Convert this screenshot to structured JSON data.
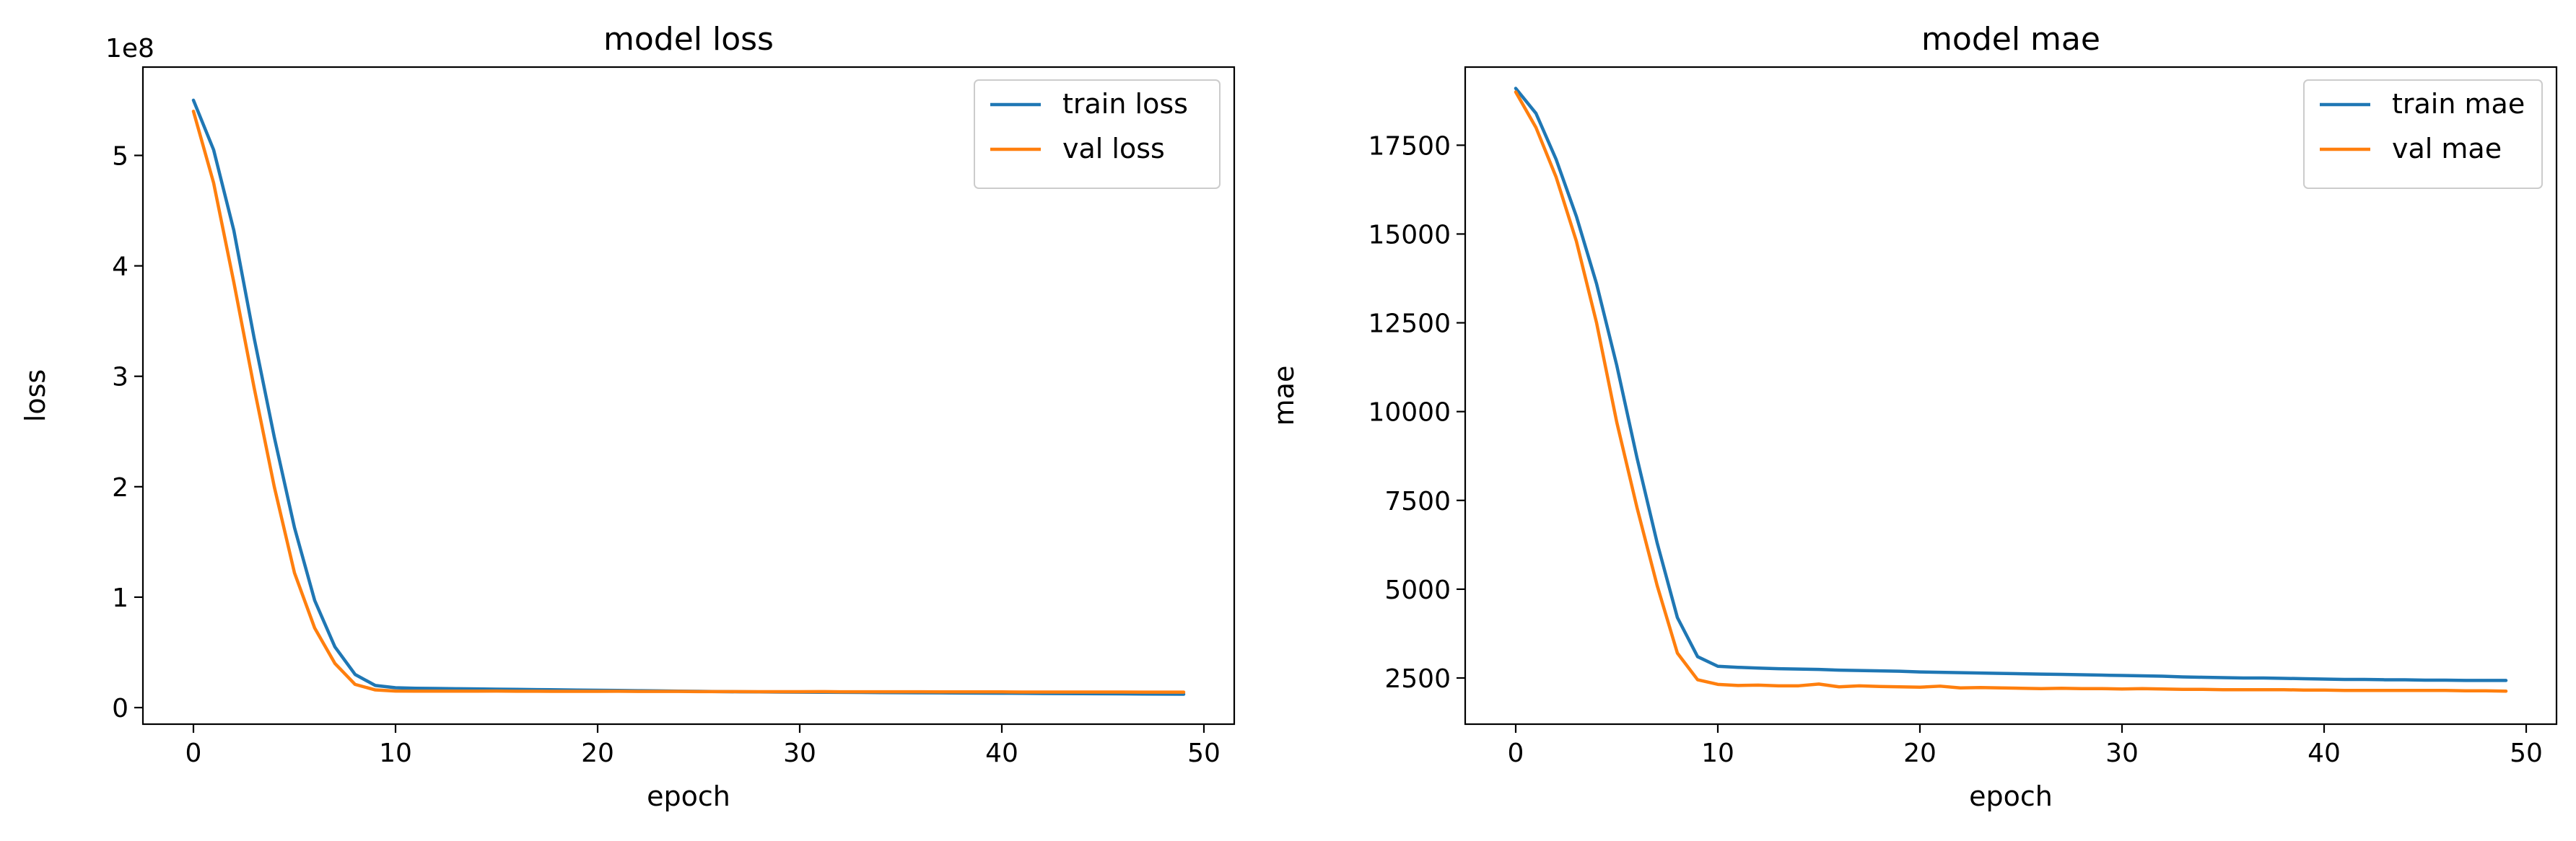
{
  "chart_data": [
    {
      "type": "line",
      "title": "model loss",
      "xlabel": "epoch",
      "ylabel": "loss",
      "offset_text": "1e8",
      "xlim": [
        -2.5,
        51.5
      ],
      "ylim": [
        -15000000,
        580000000
      ],
      "xticks": [
        0,
        10,
        20,
        30,
        40,
        50
      ],
      "xtick_labels": [
        "0",
        "10",
        "20",
        "30",
        "40",
        "50"
      ],
      "yticks": [
        0,
        100000000,
        200000000,
        300000000,
        400000000,
        500000000
      ],
      "ytick_labels": [
        "0",
        "1",
        "2",
        "3",
        "4",
        "5"
      ],
      "grid": false,
      "legend_position": "top-right",
      "x": [
        0,
        1,
        2,
        3,
        4,
        5,
        6,
        7,
        8,
        9,
        10,
        11,
        12,
        13,
        14,
        15,
        16,
        17,
        18,
        19,
        20,
        21,
        22,
        23,
        24,
        25,
        26,
        27,
        28,
        29,
        30,
        31,
        32,
        33,
        34,
        35,
        36,
        37,
        38,
        39,
        40,
        41,
        42,
        43,
        44,
        45,
        46,
        47,
        48,
        49
      ],
      "series": [
        {
          "name": "train loss",
          "color": "#1f77b4",
          "values": [
            550000000,
            505000000,
            432000000,
            335000000,
            245000000,
            163000000,
            97000000,
            55000000,
            30000000,
            20000000,
            18000000,
            17500000,
            17300000,
            17100000,
            16900000,
            16700000,
            16500000,
            16300000,
            16100000,
            15900000,
            15700000,
            15500000,
            15300000,
            15100000,
            14900000,
            14700000,
            14500000,
            14300000,
            14200000,
            14100000,
            14000000,
            13900000,
            13800000,
            13700000,
            13600000,
            13500000,
            13400000,
            13300000,
            13200000,
            13100000,
            13000000,
            12900000,
            12800000,
            12700000,
            12600000,
            12500000,
            12400000,
            12300000,
            12200000,
            12100000
          ]
        },
        {
          "name": "val loss",
          "color": "#ff7f0e",
          "values": [
            540000000,
            475000000,
            385000000,
            290000000,
            200000000,
            122000000,
            72000000,
            40000000,
            21000000,
            16000000,
            15000000,
            14900000,
            14900000,
            14900000,
            14900000,
            15000000,
            14800000,
            14800000,
            14700000,
            14700000,
            14700000,
            14800000,
            14600000,
            14600000,
            14600000,
            14500000,
            14500000,
            14500000,
            14400000,
            14400000,
            14400000,
            14500000,
            14300000,
            14300000,
            14300000,
            14300000,
            14300000,
            14200000,
            14200000,
            14200000,
            14200000,
            14100000,
            14100000,
            14100000,
            14100000,
            14100000,
            14100000,
            14000000,
            14000000,
            14000000
          ]
        }
      ]
    },
    {
      "type": "line",
      "title": "model mae",
      "xlabel": "epoch",
      "ylabel": "mae",
      "xlim": [
        -2.5,
        51.5
      ],
      "ylim": [
        1200,
        19700
      ],
      "xticks": [
        0,
        10,
        20,
        30,
        40,
        50
      ],
      "xtick_labels": [
        "0",
        "10",
        "20",
        "30",
        "40",
        "50"
      ],
      "yticks": [
        2500,
        5000,
        7500,
        10000,
        12500,
        15000,
        17500
      ],
      "ytick_labels": [
        "2500",
        "5000",
        "7500",
        "10000",
        "12500",
        "15000",
        "17500"
      ],
      "grid": false,
      "legend_position": "top-right",
      "x": [
        0,
        1,
        2,
        3,
        4,
        5,
        6,
        7,
        8,
        9,
        10,
        11,
        12,
        13,
        14,
        15,
        16,
        17,
        18,
        19,
        20,
        21,
        22,
        23,
        24,
        25,
        26,
        27,
        28,
        29,
        30,
        31,
        32,
        33,
        34,
        35,
        36,
        37,
        38,
        39,
        40,
        41,
        42,
        43,
        44,
        45,
        46,
        47,
        48,
        49
      ],
      "series": [
        {
          "name": "train mae",
          "color": "#1f77b4",
          "values": [
            19100,
            18400,
            17100,
            15500,
            13600,
            11300,
            8700,
            6300,
            4200,
            3100,
            2830,
            2800,
            2780,
            2760,
            2750,
            2740,
            2720,
            2710,
            2700,
            2690,
            2670,
            2660,
            2650,
            2640,
            2630,
            2620,
            2610,
            2600,
            2590,
            2580,
            2570,
            2560,
            2550,
            2530,
            2520,
            2510,
            2500,
            2500,
            2490,
            2480,
            2470,
            2460,
            2460,
            2450,
            2450,
            2440,
            2440,
            2430,
            2430,
            2430
          ]
        },
        {
          "name": "val mae",
          "color": "#ff7f0e",
          "values": [
            19000,
            18000,
            16600,
            14800,
            12500,
            9700,
            7300,
            5100,
            3200,
            2450,
            2320,
            2290,
            2300,
            2280,
            2280,
            2330,
            2250,
            2280,
            2260,
            2250,
            2240,
            2270,
            2220,
            2230,
            2220,
            2210,
            2200,
            2210,
            2200,
            2200,
            2190,
            2200,
            2190,
            2180,
            2180,
            2170,
            2170,
            2170,
            2170,
            2160,
            2160,
            2150,
            2150,
            2150,
            2150,
            2150,
            2150,
            2140,
            2140,
            2130
          ]
        }
      ]
    }
  ]
}
